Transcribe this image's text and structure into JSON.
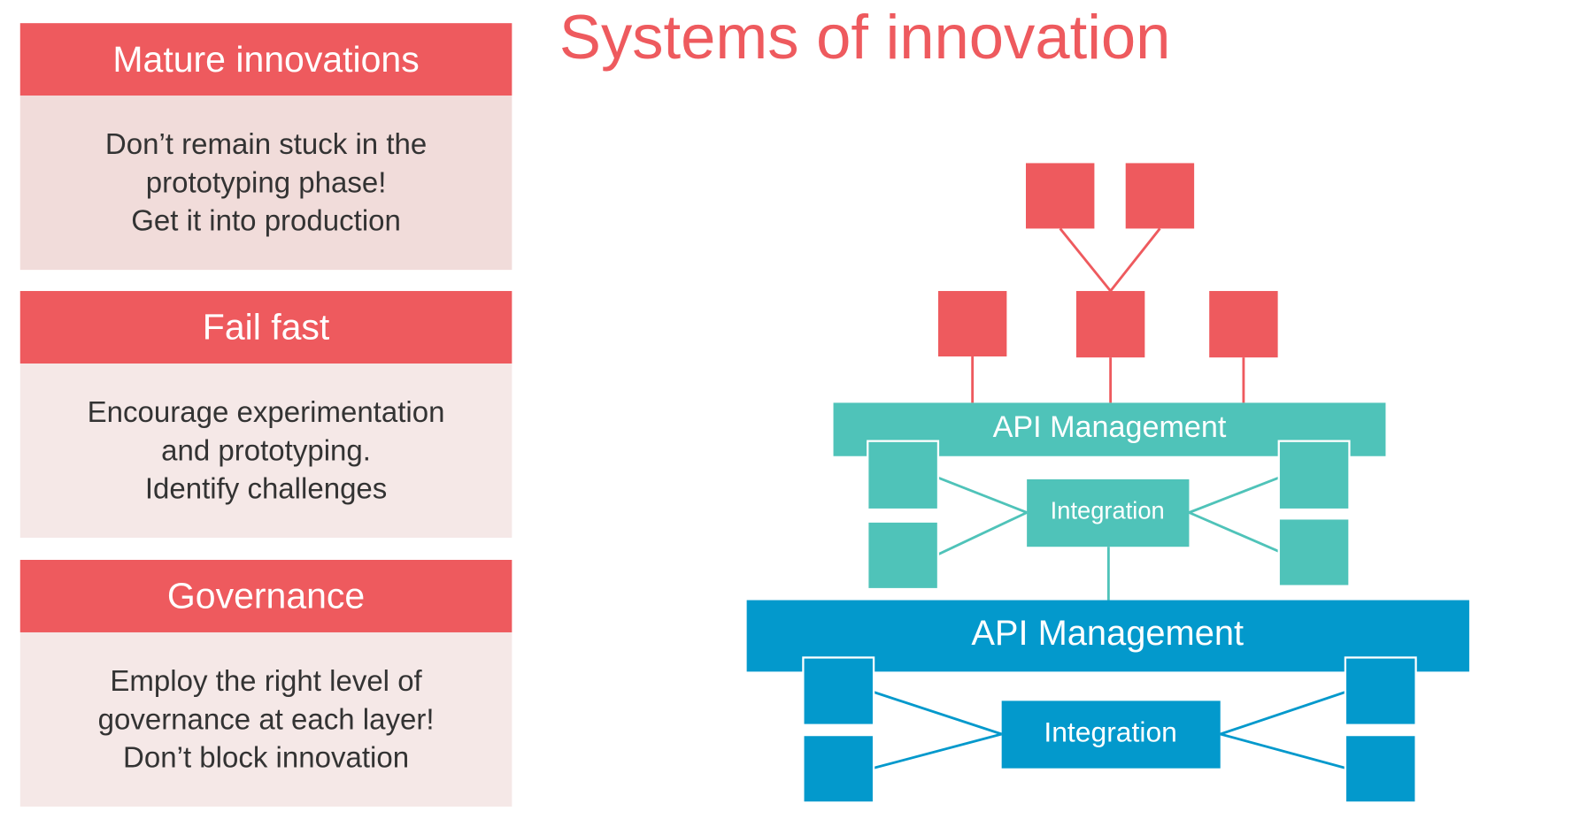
{
  "title": "Systems of innovation",
  "colors": {
    "red": "#ee5a5e",
    "teal": "#4fc3b9",
    "blue": "#0399cc",
    "card_body_1": "#f1dcda",
    "card_body": "#f5e8e7"
  },
  "cards": [
    {
      "heading": "Mature innovations",
      "lines": [
        "Don’t remain stuck in the",
        "prototyping phase!",
        "Get it into production"
      ]
    },
    {
      "heading": "Fail fast",
      "lines": [
        "Encourage experimentation",
        "and prototyping.",
        "Identify challenges"
      ]
    },
    {
      "heading": "Governance",
      "lines": [
        "Employ the right level of",
        "governance at each layer!",
        "Don’t block innovation"
      ]
    }
  ],
  "diagram": {
    "upper_layer": {
      "bar_label": "API Management",
      "integration_label": "Integration"
    },
    "lower_layer": {
      "bar_label": "API Management",
      "integration_label": "Integration"
    }
  }
}
